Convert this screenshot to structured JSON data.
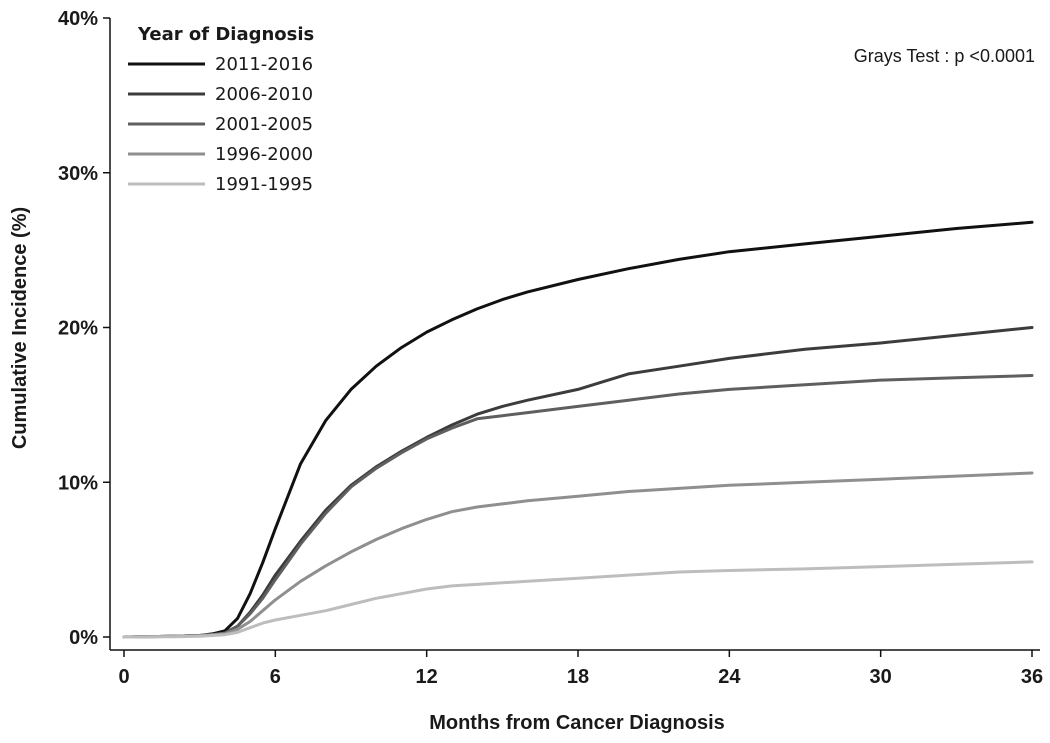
{
  "chart_data": {
    "type": "line",
    "title": "",
    "xlabel": "Months from Cancer Diagnosis",
    "ylabel": "Cumulative Incidence (%)",
    "xlim": [
      0,
      36
    ],
    "ylim": [
      0,
      40
    ],
    "x_ticks": [
      0,
      6,
      12,
      18,
      24,
      30,
      36
    ],
    "y_ticks": [
      0,
      10,
      20,
      30,
      40
    ],
    "y_tick_labels": [
      "0%",
      "10%",
      "20%",
      "30%",
      "40%"
    ],
    "grid": false,
    "legend": {
      "title": "Year of Diagnosis",
      "placement": "top-left"
    },
    "annotation": "Grays Test : p <0.0001",
    "x": [
      0,
      2,
      3,
      3.5,
      4,
      4.5,
      5,
      5.5,
      6,
      7,
      8,
      9,
      10,
      11,
      12,
      13,
      14,
      15,
      16,
      18,
      20,
      22,
      24,
      27,
      30,
      33,
      36
    ],
    "series": [
      {
        "name": "2011-2016",
        "color": "#111111",
        "values": [
          0,
          0.05,
          0.1,
          0.2,
          0.4,
          1.2,
          2.8,
          4.8,
          7.0,
          11.2,
          14.0,
          16.0,
          17.5,
          18.7,
          19.7,
          20.5,
          21.2,
          21.8,
          22.3,
          23.1,
          23.8,
          24.4,
          24.9,
          25.4,
          25.9,
          26.4,
          26.8
        ]
      },
      {
        "name": "2006-2010",
        "color": "#3c3c3c",
        "values": [
          0,
          0.05,
          0.1,
          0.15,
          0.25,
          0.7,
          1.6,
          2.7,
          4.0,
          6.2,
          8.2,
          9.8,
          11.0,
          12.0,
          12.9,
          13.7,
          14.4,
          14.9,
          15.3,
          16.0,
          17.0,
          17.5,
          18.0,
          18.6,
          19.0,
          19.5,
          20.0
        ]
      },
      {
        "name": "2001-2005",
        "color": "#5f5f5f",
        "values": [
          0,
          0.05,
          0.1,
          0.15,
          0.25,
          0.7,
          1.5,
          2.5,
          3.7,
          6.0,
          8.0,
          9.7,
          10.9,
          11.9,
          12.8,
          13.5,
          14.1,
          14.3,
          14.5,
          14.9,
          15.3,
          15.7,
          16.0,
          16.3,
          16.6,
          16.75,
          16.9
        ]
      },
      {
        "name": "1996-2000",
        "color": "#8f8f8f",
        "values": [
          0,
          0.05,
          0.1,
          0.15,
          0.2,
          0.5,
          1.0,
          1.7,
          2.4,
          3.6,
          4.6,
          5.5,
          6.3,
          7.0,
          7.6,
          8.1,
          8.4,
          8.6,
          8.8,
          9.1,
          9.4,
          9.6,
          9.8,
          10.0,
          10.2,
          10.4,
          10.6
        ]
      },
      {
        "name": "1991-1995",
        "color": "#bdbdbd",
        "values": [
          0,
          0.02,
          0.05,
          0.1,
          0.15,
          0.3,
          0.6,
          0.9,
          1.1,
          1.4,
          1.7,
          2.1,
          2.5,
          2.8,
          3.1,
          3.3,
          3.4,
          3.5,
          3.6,
          3.8,
          4.0,
          4.2,
          4.3,
          4.4,
          4.55,
          4.7,
          4.85
        ]
      }
    ]
  }
}
